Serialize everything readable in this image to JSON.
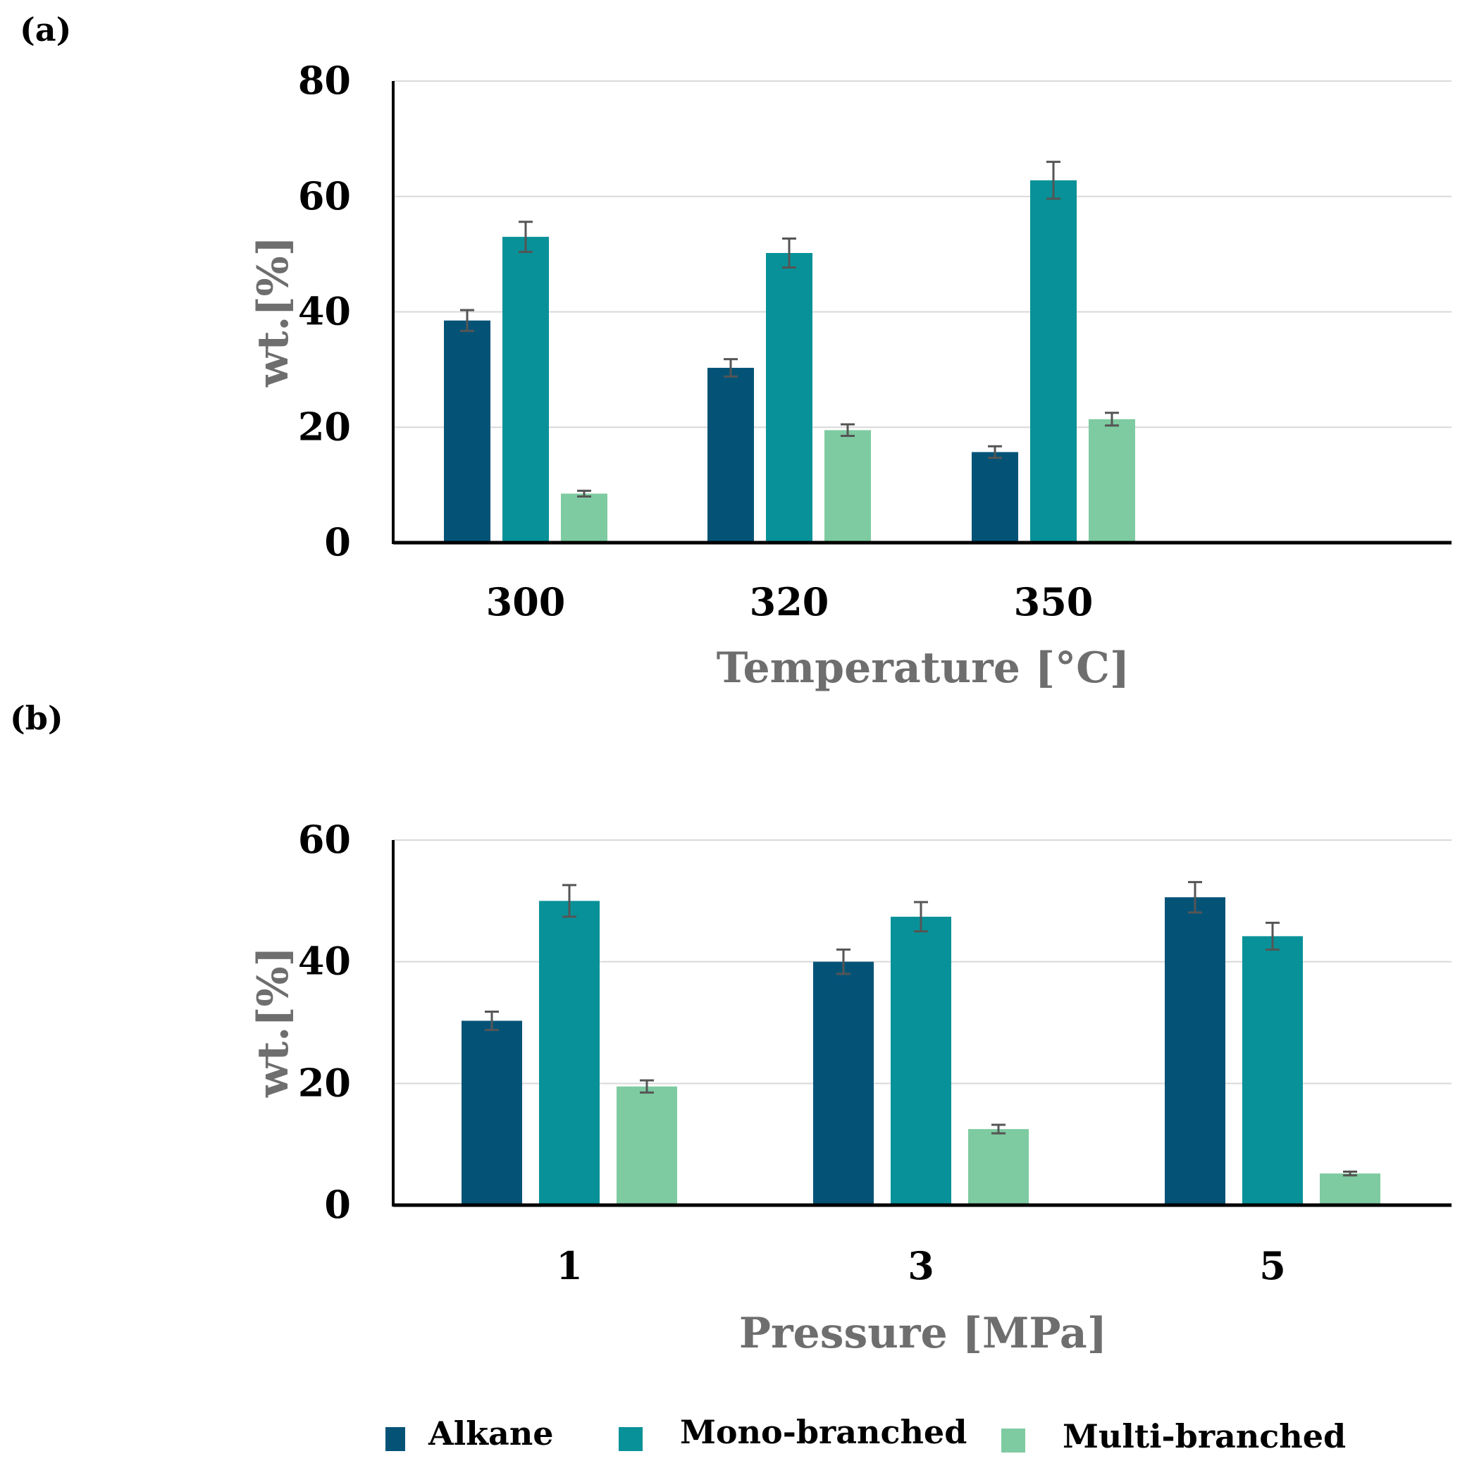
{
  "colors": {
    "alkane": "#045377",
    "mono": "#089198",
    "multi": "#7ecba1",
    "grid": "#d9d9d9",
    "error": "#555555",
    "axis_title": "#6e6e6e"
  },
  "legend": [
    {
      "key": "alkane",
      "label": "Alkane"
    },
    {
      "key": "mono",
      "label": "Mono-branched"
    },
    {
      "key": "multi",
      "label": "Multi-branched"
    }
  ],
  "chart_data": [
    {
      "panel": "(a)",
      "type": "bar",
      "xlabel": "Temperature [°C]",
      "ylabel": "wt.[%]",
      "ylim": [
        0,
        80
      ],
      "yticks": [
        "0",
        "20",
        "40",
        "60",
        "80"
      ],
      "categories": [
        "300",
        "320",
        "350"
      ],
      "grid": true,
      "series": [
        {
          "name": "Alkane",
          "key": "alkane",
          "values": [
            38.5,
            30.3,
            15.7
          ],
          "errors": [
            1.8,
            1.5,
            1.0
          ]
        },
        {
          "name": "Mono-branched",
          "key": "mono",
          "values": [
            53.0,
            50.2,
            62.8
          ],
          "errors": [
            2.6,
            2.5,
            3.2
          ]
        },
        {
          "name": "Multi-branched",
          "key": "multi",
          "values": [
            8.5,
            19.5,
            21.4
          ],
          "errors": [
            0.5,
            1.0,
            1.1
          ]
        }
      ]
    },
    {
      "panel": "(b)",
      "type": "bar",
      "xlabel": "Pressure [MPa]",
      "ylabel": "wt.[%]",
      "ylim": [
        0,
        60
      ],
      "yticks": [
        "0",
        "20",
        "40",
        "60"
      ],
      "categories": [
        "1",
        "3",
        "5"
      ],
      "grid": true,
      "series": [
        {
          "name": "Alkane",
          "key": "alkane",
          "values": [
            30.3,
            40.0,
            50.6
          ],
          "errors": [
            1.5,
            2.0,
            2.5
          ]
        },
        {
          "name": "Mono-branched",
          "key": "mono",
          "values": [
            50.0,
            47.4,
            44.2
          ],
          "errors": [
            2.6,
            2.4,
            2.2
          ]
        },
        {
          "name": "Multi-branched",
          "key": "multi",
          "values": [
            19.5,
            12.5,
            5.2
          ],
          "errors": [
            1.0,
            0.7,
            0.3
          ]
        }
      ]
    }
  ]
}
